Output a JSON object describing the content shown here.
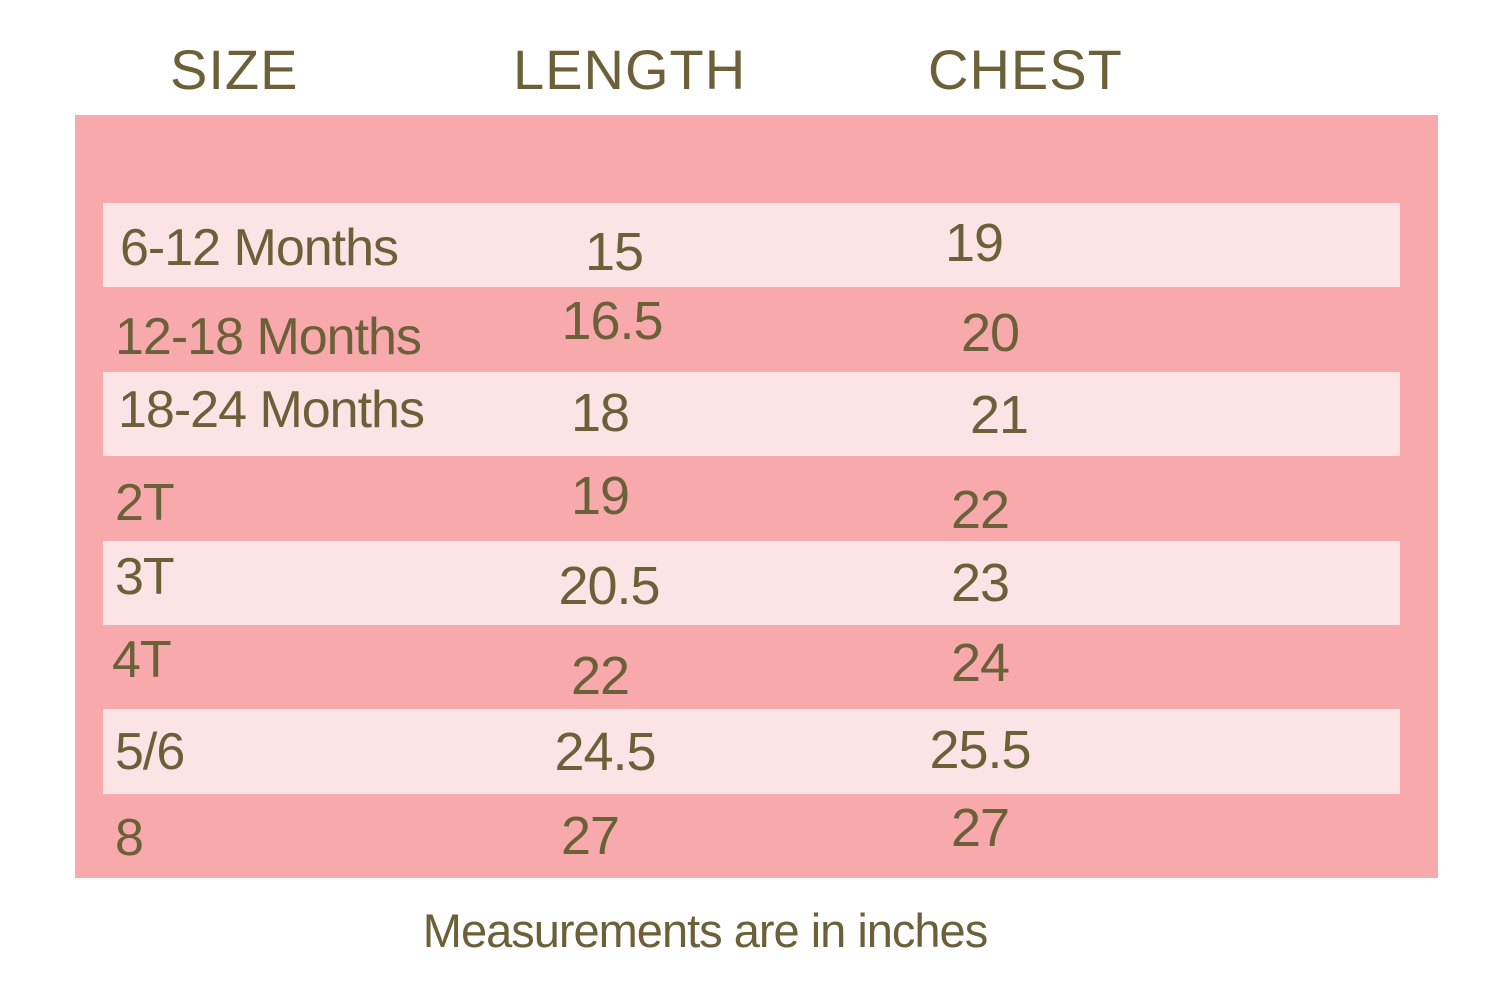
{
  "chart_data": {
    "type": "table",
    "columns": [
      "SIZE",
      "LENGTH",
      "CHEST"
    ],
    "rows": [
      [
        "6-12 Months",
        "15",
        "19"
      ],
      [
        "12-18 Months",
        "16.5",
        "20"
      ],
      [
        "18-24 Months",
        "18",
        "21"
      ],
      [
        "2T",
        "19",
        "22"
      ],
      [
        "3T",
        "20.5",
        "23"
      ],
      [
        "4T",
        "22",
        "24"
      ],
      [
        "5/6",
        "24.5",
        "25.5"
      ],
      [
        "8",
        "27",
        "27"
      ]
    ],
    "note": "Measurements are in inches",
    "units": "inches",
    "layout": {
      "stripe_pattern": "alternating light stripes on pink panel, first data row on light stripe",
      "grid": "off",
      "header_position": "above panel"
    },
    "colors": {
      "panel": "#f7a9ac",
      "stripe": "#fce4e6",
      "text": "#6b6038",
      "background": "#ffffff"
    }
  }
}
